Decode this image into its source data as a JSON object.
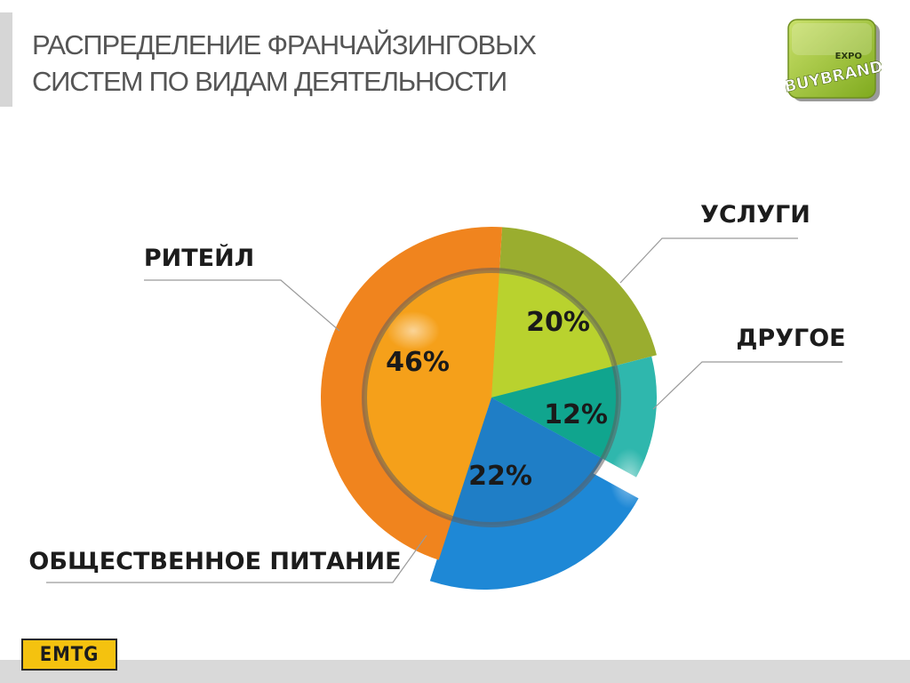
{
  "header": {
    "title_line1": "РАСПРЕДЕЛЕНИЕ ФРАНЧАЙЗИНГОВЫХ",
    "title_line2": "СИСТЕМ ПО ВИДАМ ДЕЯТЕЛЬНОСТИ"
  },
  "logo": {
    "top_text": "EXPO",
    "main_text": "BUYBRAND"
  },
  "footer": {
    "brand": "EMTG"
  },
  "chart_data": {
    "type": "pie",
    "title": "РАСПРЕДЕЛЕНИЕ ФРАНЧАЙЗИНГОВЫХ СИСТЕМ ПО ВИДАМ ДЕЯТЕЛЬНОСТИ",
    "slices": [
      {
        "name": "УСЛУГИ",
        "value": 20,
        "label": "20%",
        "color": "#9aad2f",
        "inner_color": "#b9d22e"
      },
      {
        "name": "ДРУГОЕ",
        "value": 12,
        "label": "12%",
        "color": "#2fb7ad",
        "inner_color": "#10a58e"
      },
      {
        "name": "ОБЩЕСТВЕННОЕ ПИТАНИЕ",
        "value": 22,
        "label": "22%",
        "color": "#1e88d6",
        "inner_color": "#1f7ec6"
      },
      {
        "name": "РИТЕЙЛ",
        "value": 46,
        "label": "46%",
        "color": "#f0841e",
        "inner_color": "#f5a01a"
      }
    ],
    "legend": "callout-labels"
  }
}
